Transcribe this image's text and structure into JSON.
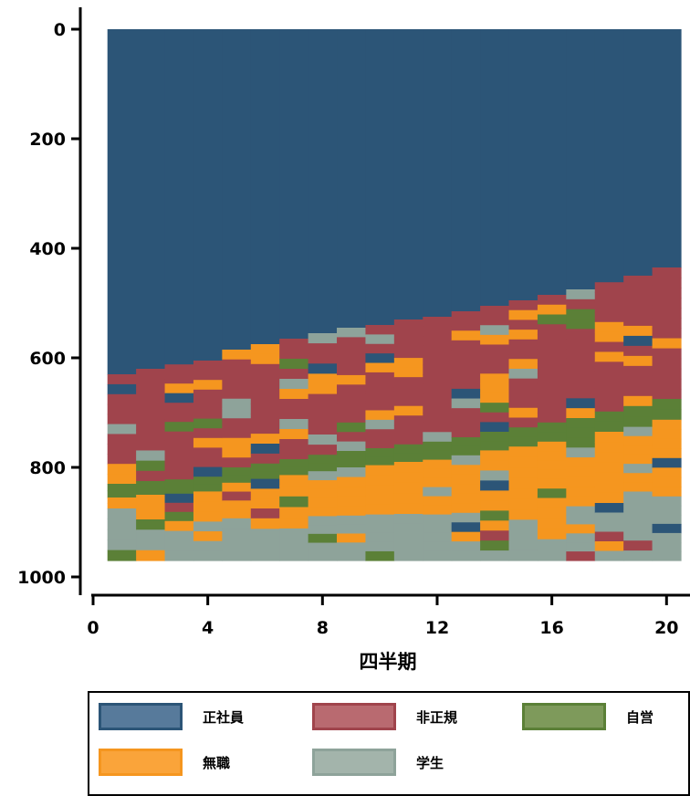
{
  "chart_data": {
    "type": "area",
    "subtype": "sequence-index-plot",
    "xlabel": "四半期",
    "ylabel": "",
    "xlim": [
      0.5,
      20.5
    ],
    "ylim": [
      0,
      970
    ],
    "y_inverted": true,
    "x_ticks": [
      0,
      4,
      8,
      12,
      16,
      20
    ],
    "y_ticks": [
      0,
      200,
      400,
      600,
      800,
      1000
    ],
    "grid": false,
    "legend_position": "bottom",
    "states": [
      {
        "name": "正社員",
        "color": "#2c5577",
        "fill": "#577a9b",
        "border": "#2c5577"
      },
      {
        "name": "非正規",
        "color": "#a0444c",
        "fill": "#b96a70",
        "border": "#a0444c"
      },
      {
        "name": "自営",
        "color": "#5b8037",
        "fill": "#7e9a5b",
        "border": "#5b8037"
      },
      {
        "name": "無職",
        "color": "#f5961f",
        "fill": "#faa43a",
        "border": "#f5961f"
      },
      {
        "name": "学生",
        "color": "#8ea39a",
        "fill": "#a3b4ab",
        "border": "#8ea39a"
      }
    ],
    "quarters": [
      1,
      2,
      3,
      4,
      5,
      6,
      7,
      8,
      9,
      10,
      11,
      12,
      13,
      14,
      15,
      16,
      17,
      18,
      19,
      20
    ],
    "series": [
      {
        "name": "正社員",
        "values": [
          630,
          620,
          612,
          605,
          585,
          575,
          565,
          555,
          545,
          540,
          530,
          525,
          515,
          505,
          495,
          485,
          475,
          462,
          450,
          435
        ]
      },
      {
        "name": "非正規",
        "values": [
          200,
          205,
          210,
          212,
          215,
          218,
          220,
          222,
          225,
          225,
          228,
          228,
          230,
          230,
          232,
          233,
          235,
          236,
          238,
          240
        ]
      },
      {
        "name": "自営",
        "values": [
          25,
          25,
          26,
          27,
          28,
          28,
          29,
          30,
          30,
          31,
          32,
          33,
          33,
          34,
          35,
          35,
          36,
          37,
          38,
          38
        ]
      },
      {
        "name": "無職",
        "values": [
          20,
          45,
          50,
          55,
          65,
          72,
          78,
          82,
          88,
          90,
          95,
          100,
          105,
          110,
          115,
          120,
          125,
          130,
          135,
          140
        ]
      },
      {
        "name": "学生",
        "values": [
          95,
          75,
          72,
          71,
          77,
          77,
          78,
          81,
          82,
          84,
          85,
          84,
          87,
          91,
          93,
          97,
          99,
          105,
          109,
          117
        ]
      }
    ]
  }
}
